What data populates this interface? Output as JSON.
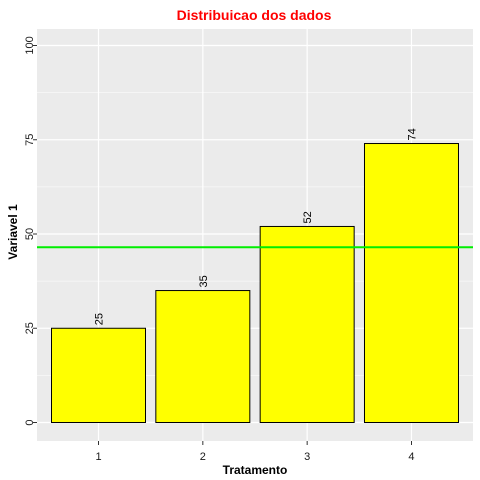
{
  "chart_data": {
    "type": "bar",
    "title": "Distribuicao dos dados",
    "xlabel": "Tratamento",
    "ylabel": "Variavel 1",
    "categories": [
      "1",
      "2",
      "3",
      "4"
    ],
    "values": [
      25,
      35,
      52,
      74
    ],
    "data_labels": [
      "25",
      "35",
      "52",
      "74"
    ],
    "ylim": [
      0,
      100
    ],
    "yticks": [
      0,
      25,
      50,
      75,
      100
    ],
    "ytick_labels": [
      "0",
      "25",
      "50",
      "75",
      "100"
    ],
    "reference_line": {
      "y": 46.5
    },
    "grid": true,
    "legend": "none",
    "colors": {
      "bar_fill": "#ffff00",
      "bar_outline": "#000000",
      "reference_line": "#00ee00",
      "title": "#ff0000",
      "panel_background": "#ebebeb",
      "grid": "#ffffff"
    }
  }
}
